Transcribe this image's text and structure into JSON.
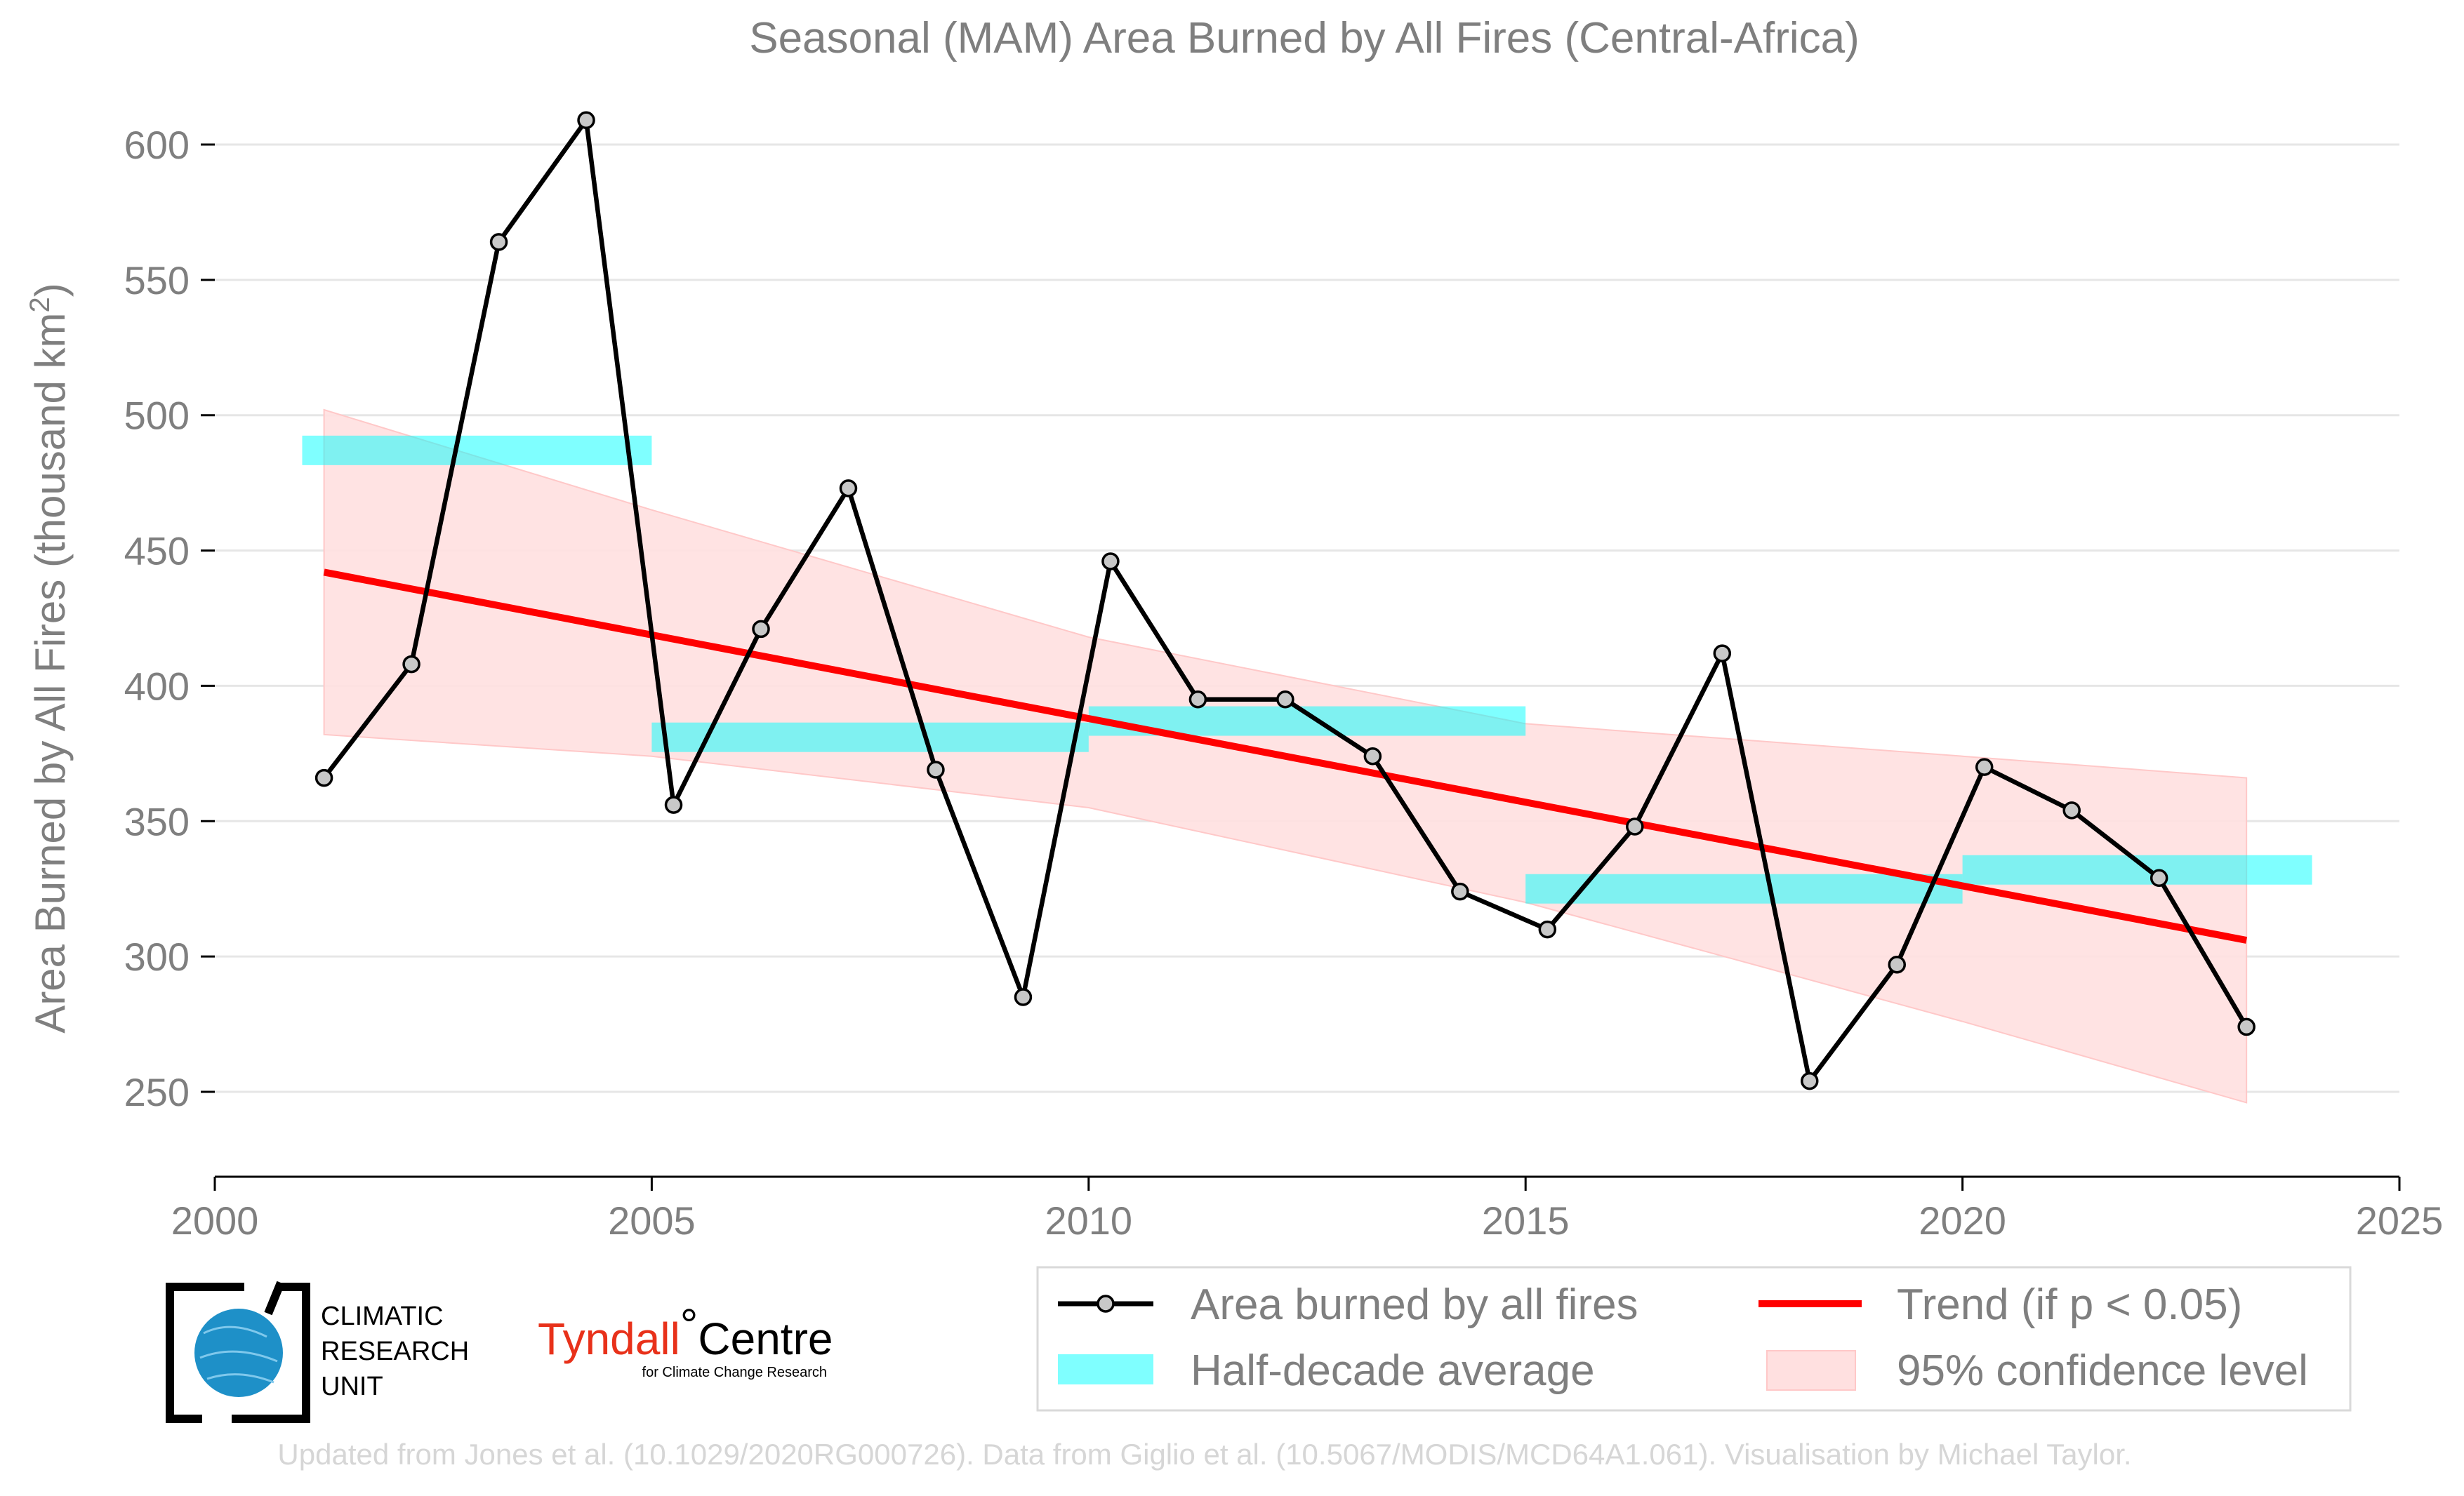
{
  "chart_data": {
    "type": "line",
    "title": "Seasonal (MAM) Area Burned by All Fires (Central-Africa)",
    "ylabel_main": "Area Burned by All Fires (thousand km",
    "ylabel_sup": "2",
    "ylabel_close": ")",
    "xlim": [
      2000,
      2025
    ],
    "ylim": [
      218,
      622
    ],
    "x_ticks": [
      2000,
      2005,
      2010,
      2015,
      2020,
      2025
    ],
    "y_ticks": [
      250,
      300,
      350,
      400,
      450,
      500,
      550,
      600
    ],
    "grid": "horizontal",
    "series": [
      {
        "name": "Area burned by all fires",
        "color": "#000000",
        "marker_color": "#c8c8c8",
        "x": [
          2001.25,
          2002.25,
          2003.25,
          2004.25,
          2005.25,
          2006.25,
          2007.25,
          2008.25,
          2009.25,
          2010.25,
          2011.25,
          2012.25,
          2013.25,
          2014.25,
          2015.25,
          2016.25,
          2017.25,
          2018.25,
          2019.25,
          2020.25,
          2021.25,
          2022.25,
          2023.25
        ],
        "values": [
          366,
          408,
          564,
          609,
          356,
          421,
          473,
          369,
          285,
          446,
          395,
          395,
          374,
          324,
          310,
          348,
          412,
          254,
          297,
          370,
          354,
          329,
          274
        ]
      }
    ],
    "half_decade_average": {
      "name": "Half-decade average",
      "color": "#00ffff",
      "segments": [
        {
          "x_start": 2001,
          "x_end": 2005,
          "value": 487
        },
        {
          "x_start": 2005,
          "x_end": 2010,
          "value": 381
        },
        {
          "x_start": 2010,
          "x_end": 2015,
          "value": 387
        },
        {
          "x_start": 2015,
          "x_end": 2020,
          "value": 325
        },
        {
          "x_start": 2020,
          "x_end": 2024,
          "value": 332
        }
      ]
    },
    "trend": {
      "name": "Trend (if p < 0.05)",
      "color": "#ff0000",
      "x": [
        2001.25,
        2023.25
      ],
      "values": [
        442,
        306
      ]
    },
    "confidence_band": {
      "name": "95% confidence level",
      "color": "#ffe0e0",
      "x": [
        2001.25,
        2005,
        2010,
        2015,
        2020,
        2023.25
      ],
      "upper": [
        502,
        465,
        418,
        386,
        374,
        366
      ],
      "lower": [
        382,
        374,
        355,
        320,
        276,
        246
      ]
    },
    "legend_position": "bottom-right"
  },
  "logos": {
    "cru_line1": "CLIMATIC",
    "cru_line2": "RESEARCH",
    "cru_line3": "UNIT",
    "tyndall_main": "Tyndall",
    "tyndall_degree": "°",
    "tyndall_centre": "Centre",
    "tyndall_sub": "for Climate Change Research"
  },
  "credit": "Updated from Jones et al. (10.1029/2020RG000726). Data from Giglio et al. (10.5067/MODIS/MCD64A1.061). Visualisation by Michael Taylor."
}
